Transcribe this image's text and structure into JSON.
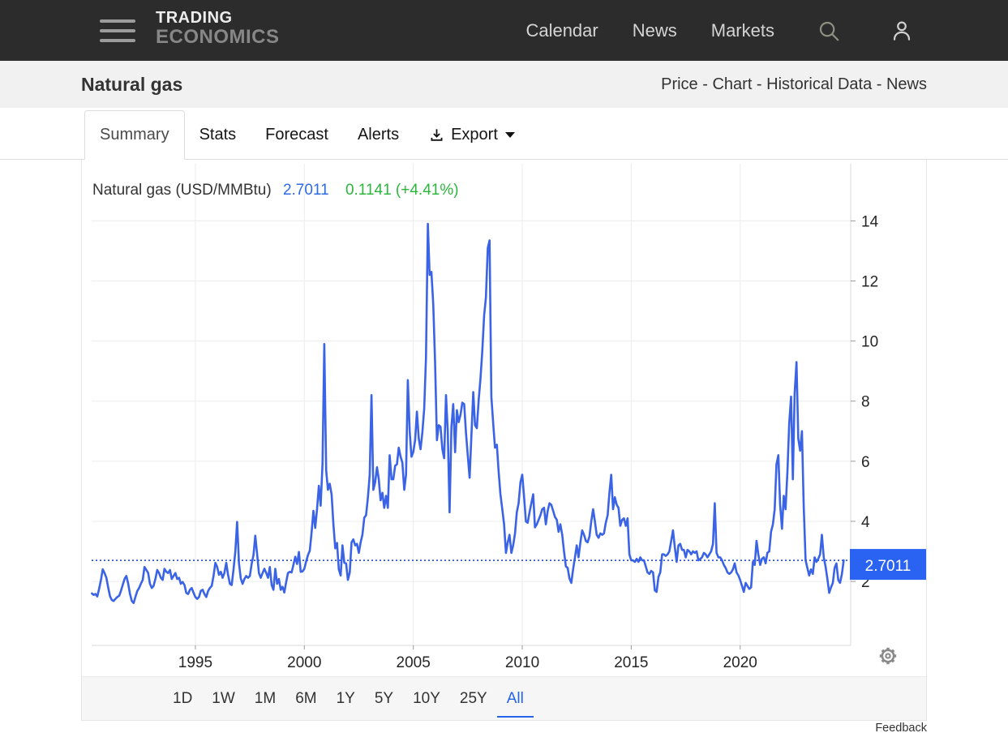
{
  "navbar": {
    "logo_line1": "TRADING",
    "logo_line2": "ECONOMICS",
    "links": [
      "Calendar",
      "News",
      "Markets"
    ]
  },
  "header": {
    "title": "Natural gas",
    "links": [
      "Price",
      "Chart",
      "Historical Data",
      "News"
    ],
    "separator": " - "
  },
  "tabs": {
    "summary": "Summary",
    "stats": "Stats",
    "forecast": "Forecast",
    "alerts": "Alerts",
    "export": "Export",
    "active": "Summary"
  },
  "legend": {
    "label": "Natural gas (USD/MMBtu)",
    "price": "2.7011",
    "change": "0.1141 (+4.41%)"
  },
  "price_badge": "2.7011",
  "range_buttons": [
    "1D",
    "1W",
    "1M",
    "6M",
    "1Y",
    "5Y",
    "10Y",
    "25Y",
    "All"
  ],
  "active_range": "All",
  "feedback": "Feedback",
  "colors": {
    "line_blue": "#3a63e6",
    "dotted_blue": "#3059e6",
    "badge_blue": "#2a62f2",
    "price_blue": "#2e6ae4",
    "change_green": "#2cb63c",
    "grid": "#ececec",
    "axis": "#d8d8d8",
    "tick": "#9a9a9a",
    "axis_text": "#262626"
  },
  "chart_data": {
    "type": "line",
    "title": "Natural gas (USD/MMBtu)",
    "series_name": "Natural gas",
    "unit": "USD/MMBtu",
    "current_value": 2.7011,
    "change_abs": 0.1141,
    "change_pct": 4.41,
    "grid": true,
    "legend_position": "top-left",
    "x_ticks": [
      1995,
      2000,
      2005,
      2010,
      2015,
      2020
    ],
    "y_ticks": [
      2,
      4,
      6,
      8,
      10,
      12,
      14
    ],
    "xlim": [
      1990.24,
      2025.07
    ],
    "ylim": [
      -0.13,
      15.9
    ],
    "x_start": 1990.25,
    "x_step_years": 0.083333,
    "values": [
      1.6,
      1.55,
      1.58,
      1.5,
      1.75,
      2.05,
      2.4,
      2.28,
      2.12,
      1.8,
      1.5,
      1.38,
      1.35,
      1.42,
      1.48,
      1.52,
      1.68,
      1.88,
      2.08,
      2.18,
      1.92,
      1.58,
      1.35,
      1.28,
      1.48,
      1.68,
      1.78,
      1.92,
      2.05,
      2.48,
      2.38,
      2.28,
      1.92,
      1.78,
      1.85,
      2.08,
      2.38,
      2.28,
      2.12,
      2.05,
      2.42,
      2.32,
      2.28,
      2.38,
      2.08,
      2.18,
      2.28,
      2.08,
      2.12,
      1.92,
      1.98,
      1.88,
      1.62,
      1.58,
      1.72,
      1.78,
      1.62,
      1.48,
      1.42,
      1.48,
      1.68,
      1.72,
      1.58,
      1.48,
      1.68,
      1.78,
      1.85,
      2.18,
      2.62,
      2.48,
      2.22,
      2.32,
      2.12,
      2.28,
      2.62,
      2.22,
      1.92,
      1.88,
      2.38,
      3.0,
      3.98,
      2.6,
      2.1,
      1.92,
      2.08,
      2.18,
      2.12,
      2.18,
      2.58,
      2.88,
      3.52,
      2.9,
      2.28,
      2.12,
      2.28,
      2.42,
      2.28,
      2.12,
      2.48,
      1.88,
      1.72,
      2.42,
      1.92,
      2.08,
      1.72,
      1.82,
      1.63,
      1.98,
      2.28,
      2.32,
      2.3,
      2.55,
      2.82,
      2.58,
      2.98,
      2.32,
      2.33,
      2.42,
      2.66,
      2.88,
      3.02,
      3.62,
      4.35,
      3.78,
      4.42,
      5.18,
      4.52,
      5.9,
      9.9,
      5.7,
      5.05,
      5.25,
      4.9,
      3.92,
      3.1,
      3.28,
      2.4,
      2.2,
      3.2,
      2.62,
      2.6,
      2.05,
      2.3,
      3.3,
      3.4,
      3.2,
      3.25,
      2.95,
      3.3,
      3.55,
      4.12,
      4.2,
      4.8,
      5.55,
      8.2,
      5.05,
      5.3,
      5.8,
      5.4,
      4.7,
      4.95,
      4.45,
      4.85,
      4.45,
      6.2,
      5.4,
      5.4,
      5.85,
      5.9,
      6.45,
      6.15,
      5.95,
      5.05,
      5.55,
      8.7,
      7.0,
      6.15,
      6.3,
      6.7,
      7.65,
      6.75,
      6.4,
      6.95,
      7.75,
      9.45,
      13.9,
      12.2,
      12.3,
      11.2,
      9.3,
      6.7,
      7.2,
      7.15,
      6.4,
      6.1,
      8.2,
      6.95,
      4.3,
      7.15,
      7.9,
      6.3,
      7.7,
      7.3,
      7.55,
      7.95,
      7.9,
      6.95,
      6.2,
      5.45,
      6.85,
      8.3,
      7.2,
      7.1,
      8.05,
      8.75,
      9.65,
      10.85,
      11.45,
      13.1,
      13.35,
      8.15,
      7.25,
      6.45,
      6.55,
      5.65,
      4.9,
      4.4,
      3.9,
      2.95,
      3.3,
      3.55,
      2.95,
      3.2,
      3.6,
      4.3,
      4.6,
      5.3,
      5.55,
      4.8,
      4.0,
      3.95,
      4.3,
      4.6,
      4.9,
      3.8,
      3.9,
      4.05,
      4.2,
      4.4,
      4.45,
      3.9,
      4.35,
      4.6,
      4.55,
      4.35,
      4.15,
      4.05,
      3.65,
      3.9,
      3.55,
      3.0,
      2.5,
      2.45,
      2.1,
      1.95,
      2.4,
      2.8,
      3.2,
      2.8,
      3.3,
      3.7,
      3.55,
      3.35,
      3.3,
      3.5,
      4.0,
      4.4,
      4.0,
      3.55,
      3.45,
      3.6,
      3.55,
      3.6,
      3.95,
      4.2,
      4.95,
      5.55,
      4.4,
      4.8,
      4.55,
      4.45,
      3.85,
      4.05,
      4.1,
      3.85,
      4.1,
      2.9,
      2.7,
      2.7,
      2.65,
      2.75,
      2.65,
      2.8,
      2.7,
      2.7,
      2.5,
      2.3,
      2.25,
      2.35,
      2.3,
      1.7,
      1.65,
      2.15,
      2.3,
      2.9,
      2.9,
      2.85,
      2.9,
      3.0,
      3.35,
      3.7,
      3.15,
      2.65,
      3.2,
      3.25,
      3.05,
      3.05,
      2.8,
      3.05,
      3.0,
      2.9,
      3.0,
      2.95,
      3.0,
      2.7,
      2.75,
      2.8,
      2.95,
      2.9,
      2.8,
      2.9,
      3.0,
      3.25,
      4.6,
      2.95,
      2.8,
      2.8,
      2.7,
      2.55,
      2.45,
      2.3,
      2.25,
      2.3,
      2.4,
      2.6,
      2.3,
      2.2,
      2.05,
      1.85,
      1.65,
      1.95,
      1.85,
      1.75,
      1.8,
      2.65,
      2.55,
      3.35,
      2.9,
      2.55,
      2.75,
      2.8,
      2.6,
      2.95,
      3.0,
      3.65,
      3.9,
      4.4,
      5.9,
      6.2,
      4.55,
      3.75,
      4.85,
      4.4,
      5.65,
      7.25,
      8.15,
      5.4,
      8.25,
      9.3,
      6.75,
      6.35,
      7.0,
      4.5,
      2.7,
      2.45,
      2.2,
      2.4,
      2.25,
      2.8,
      2.65,
      2.75,
      2.9,
      3.55,
      2.8,
      2.5,
      2.1,
      1.62,
      1.8,
      1.95,
      2.45,
      2.6,
      2.05,
      1.95,
      2.25,
      2.7011
    ]
  }
}
